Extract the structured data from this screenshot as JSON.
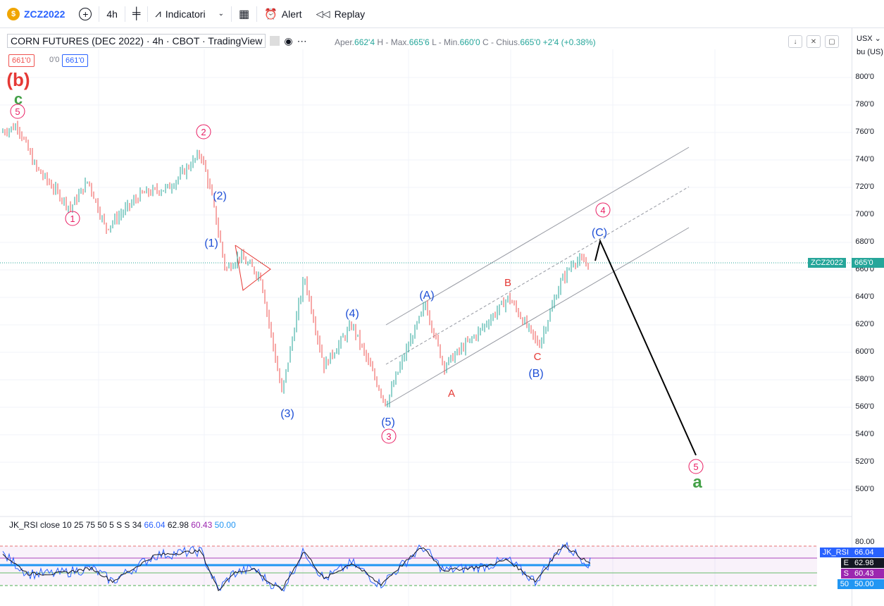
{
  "toolbar": {
    "symbol": "ZCZ2022",
    "interval": "4h",
    "indicators_label": "Indicatori",
    "alert_label": "Alert",
    "replay_label": "Replay"
  },
  "legend": {
    "title": "CORN FUTURES (DEC 2022) · 4h · CBOT · TradingView",
    "ohlc": {
      "open_label": "Aper.",
      "open": "662'4",
      "high_label": "H - Max.",
      "high": "665'6",
      "low_label": "L - Min.",
      "low": "660'0",
      "close_label": "C - Chius.",
      "close": "665'0",
      "change": "+2'4 (+0.38%)"
    },
    "sell": "661'0",
    "spread": "0'0",
    "buy": "661'0"
  },
  "axis": {
    "currency": "USX",
    "unit": "bu (US)",
    "ticks": [
      "800'0",
      "780'0",
      "760'0",
      "740'0",
      "720'0",
      "700'0",
      "680'0",
      "660'0",
      "640'0",
      "620'0",
      "600'0",
      "580'0",
      "560'0",
      "540'0",
      "520'0",
      "500'0"
    ],
    "rsi_ticks": [
      "80.00"
    ],
    "price_tag_symbol": "ZCZ2022",
    "price_tag_value": "665'0"
  },
  "rsi": {
    "legend": "JK_RSI close 10 25 75 50 5 S S 34",
    "v1": "66.04",
    "v2": "62.98",
    "v3": "60.43",
    "v4": "50.00",
    "tags": [
      {
        "label": "JK_RSI",
        "value": "66.04",
        "color": "#2962ff"
      },
      {
        "label": "E",
        "value": "62.98",
        "color": "#131722"
      },
      {
        "label": "S",
        "value": "60.43",
        "color": "#9c27b0"
      },
      {
        "label": "50",
        "value": "50.00",
        "color": "#2196f3"
      }
    ]
  },
  "wave_labels": {
    "b": "(b)",
    "c": "c",
    "five": "5",
    "two": "2",
    "one": "1",
    "three": "3",
    "four": "4",
    "p1": "(1)",
    "p2": "(2)",
    "p3": "(3)",
    "p4": "(4)",
    "p5": "(5)",
    "pA": "(A)",
    "pB": "(B)",
    "pC": "(C)",
    "A": "A",
    "B": "B",
    "C": "C",
    "a": "a"
  },
  "chart_data": {
    "type": "line",
    "ylim": [
      495,
      810
    ],
    "anchors": [
      [
        0,
        760
      ],
      [
        25,
        765
      ],
      [
        50,
        735
      ],
      [
        100,
        705
      ],
      [
        125,
        725
      ],
      [
        150,
        690
      ],
      [
        200,
        715
      ],
      [
        240,
        720
      ],
      [
        285,
        745
      ],
      [
        300,
        715
      ],
      [
        320,
        660
      ],
      [
        340,
        670
      ],
      [
        370,
        655
      ],
      [
        400,
        570
      ],
      [
        432,
        655
      ],
      [
        460,
        590
      ],
      [
        500,
        620
      ],
      [
        548,
        562
      ],
      [
        568,
        590
      ],
      [
        604,
        635
      ],
      [
        630,
        590
      ],
      [
        680,
        615
      ],
      [
        722,
        640
      ],
      [
        765,
        605
      ],
      [
        795,
        650
      ],
      [
        815,
        667
      ],
      [
        835,
        665
      ]
    ],
    "rsi_anchors": [
      [
        0,
        75
      ],
      [
        40,
        55
      ],
      [
        80,
        55
      ],
      [
        130,
        60
      ],
      [
        160,
        48
      ],
      [
        190,
        60
      ],
      [
        220,
        72
      ],
      [
        285,
        76
      ],
      [
        310,
        40
      ],
      [
        330,
        55
      ],
      [
        360,
        60
      ],
      [
        380,
        48
      ],
      [
        400,
        40
      ],
      [
        432,
        76
      ],
      [
        460,
        50
      ],
      [
        500,
        65
      ],
      [
        540,
        45
      ],
      [
        600,
        80
      ],
      [
        630,
        58
      ],
      [
        690,
        62
      ],
      [
        720,
        68
      ],
      [
        760,
        48
      ],
      [
        800,
        82
      ],
      [
        835,
        65
      ]
    ]
  }
}
